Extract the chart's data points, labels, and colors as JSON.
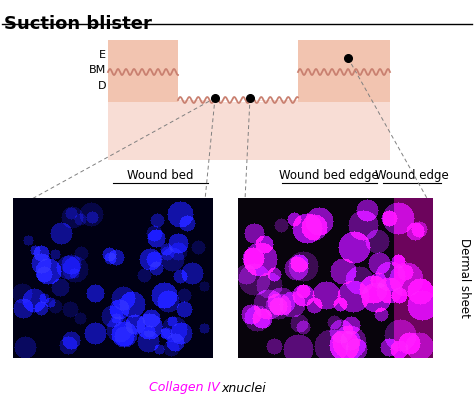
{
  "title": "Suction blister",
  "title_fontsize": 13,
  "title_fontweight": "bold",
  "bg_color": "#ffffff",
  "skin_color": "#f2c4b0",
  "skin_color_light": "#f8ddd5",
  "wavy_color": "#c98070",
  "labels_E": "E",
  "labels_BM": "BM",
  "labels_D": "D",
  "label_wound_bed": "Wound bed",
  "label_wound_bed_edge": "Wound bed edge",
  "label_wound_edge": "Wound edge",
  "label_dermal_sheet": "Dermal sheet",
  "legend_collagen": "Collagen IV",
  "legend_nuclei": "xnuclei",
  "collagen_color": "#ff00ff",
  "nuclei_color": "#000000"
}
